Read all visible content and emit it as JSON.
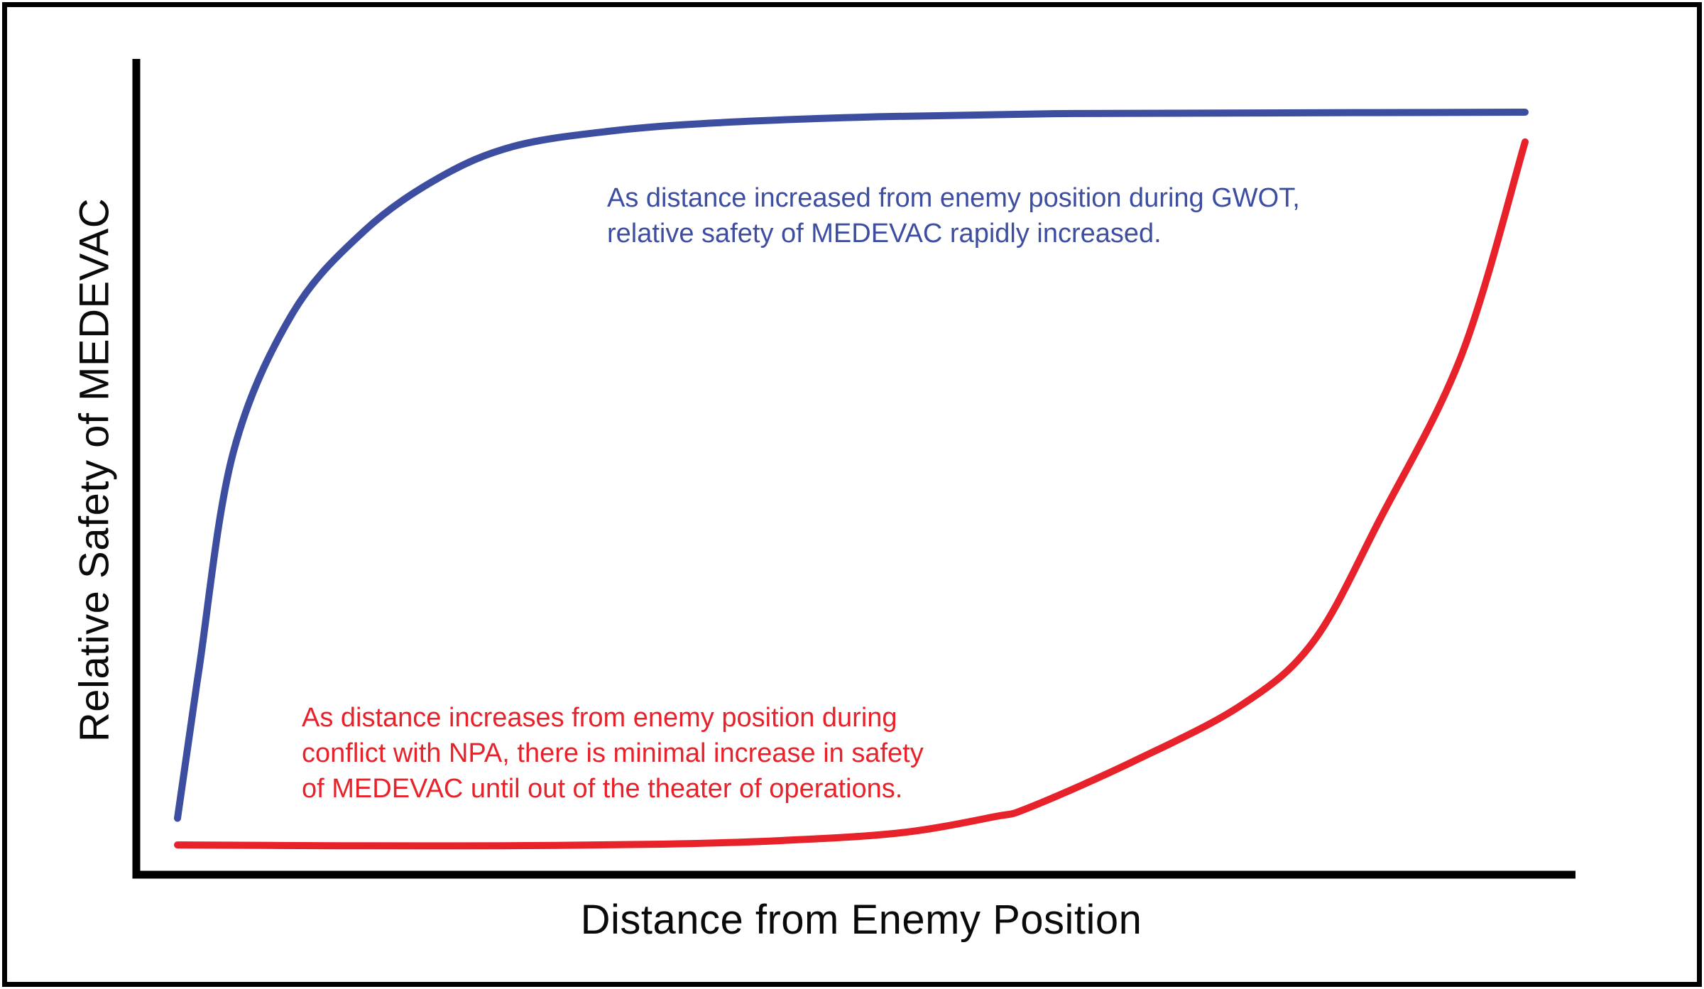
{
  "figure": {
    "x_axis_label": "Distance from Enemy Position",
    "y_axis_label": "Relative Safety of MEDEVAC",
    "colors": {
      "gwot_curve": "#3D4EA1",
      "npa_curve": "#E8222A",
      "axes": "#000000",
      "frame": "#000000",
      "background": "#FFFFFF"
    },
    "annotations": {
      "gwot": {
        "color": "#3D4EA1",
        "lines": [
          "As distance increased from enemy position during GWOT,",
          "relative safety of MEDEVAC rapidly increased."
        ]
      },
      "npa": {
        "color": "#E8222A",
        "lines": [
          "As distance increases from enemy position during",
          "conflict with NPA, there is minimal increase in safety",
          "of MEDEVAC until out of the theater of operations."
        ]
      }
    }
  },
  "chart_data": {
    "type": "line",
    "title": "",
    "xlabel": "Distance from Enemy Position",
    "ylabel": "Relative Safety of MEDEVAC",
    "xlim": [
      0,
      1
    ],
    "ylim": [
      0,
      1
    ],
    "axes_numeric": false,
    "grid": false,
    "legend": "none (series identified by in-plot colored annotations)",
    "units_note": "No tick marks or numeric scales shown; point values are normalized 0-1 estimates read from curve geometry.",
    "series": [
      {
        "name": "GWOT: relative safety of MEDEVAC vs distance",
        "color": "#3D4EA1",
        "shape": "rapid saturating rise to plateau",
        "points": [
          [
            0.0,
            0.074
          ],
          [
            0.016,
            0.27
          ],
          [
            0.041,
            0.551
          ],
          [
            0.085,
            0.735
          ],
          [
            0.139,
            0.845
          ],
          [
            0.195,
            0.915
          ],
          [
            0.249,
            0.955
          ],
          [
            0.32,
            0.975
          ],
          [
            0.4,
            0.986
          ],
          [
            0.52,
            0.994
          ],
          [
            0.65,
            0.998
          ],
          [
            0.8,
            0.999
          ],
          [
            1.0,
            1.0
          ]
        ]
      },
      {
        "name": "NPA conflict: relative safety of MEDEVAC vs distance",
        "color": "#E8222A",
        "shape": "nearly flat, then late exponential rise",
        "points": [
          [
            0.0,
            0.039
          ],
          [
            0.12,
            0.038
          ],
          [
            0.24,
            0.038
          ],
          [
            0.36,
            0.04
          ],
          [
            0.45,
            0.045
          ],
          [
            0.537,
            0.055
          ],
          [
            0.606,
            0.076
          ],
          [
            0.632,
            0.088
          ],
          [
            0.711,
            0.15
          ],
          [
            0.79,
            0.223
          ],
          [
            0.843,
            0.306
          ],
          [
            0.892,
            0.465
          ],
          [
            0.953,
            0.682
          ],
          [
            1.0,
            0.961
          ]
        ]
      }
    ]
  }
}
